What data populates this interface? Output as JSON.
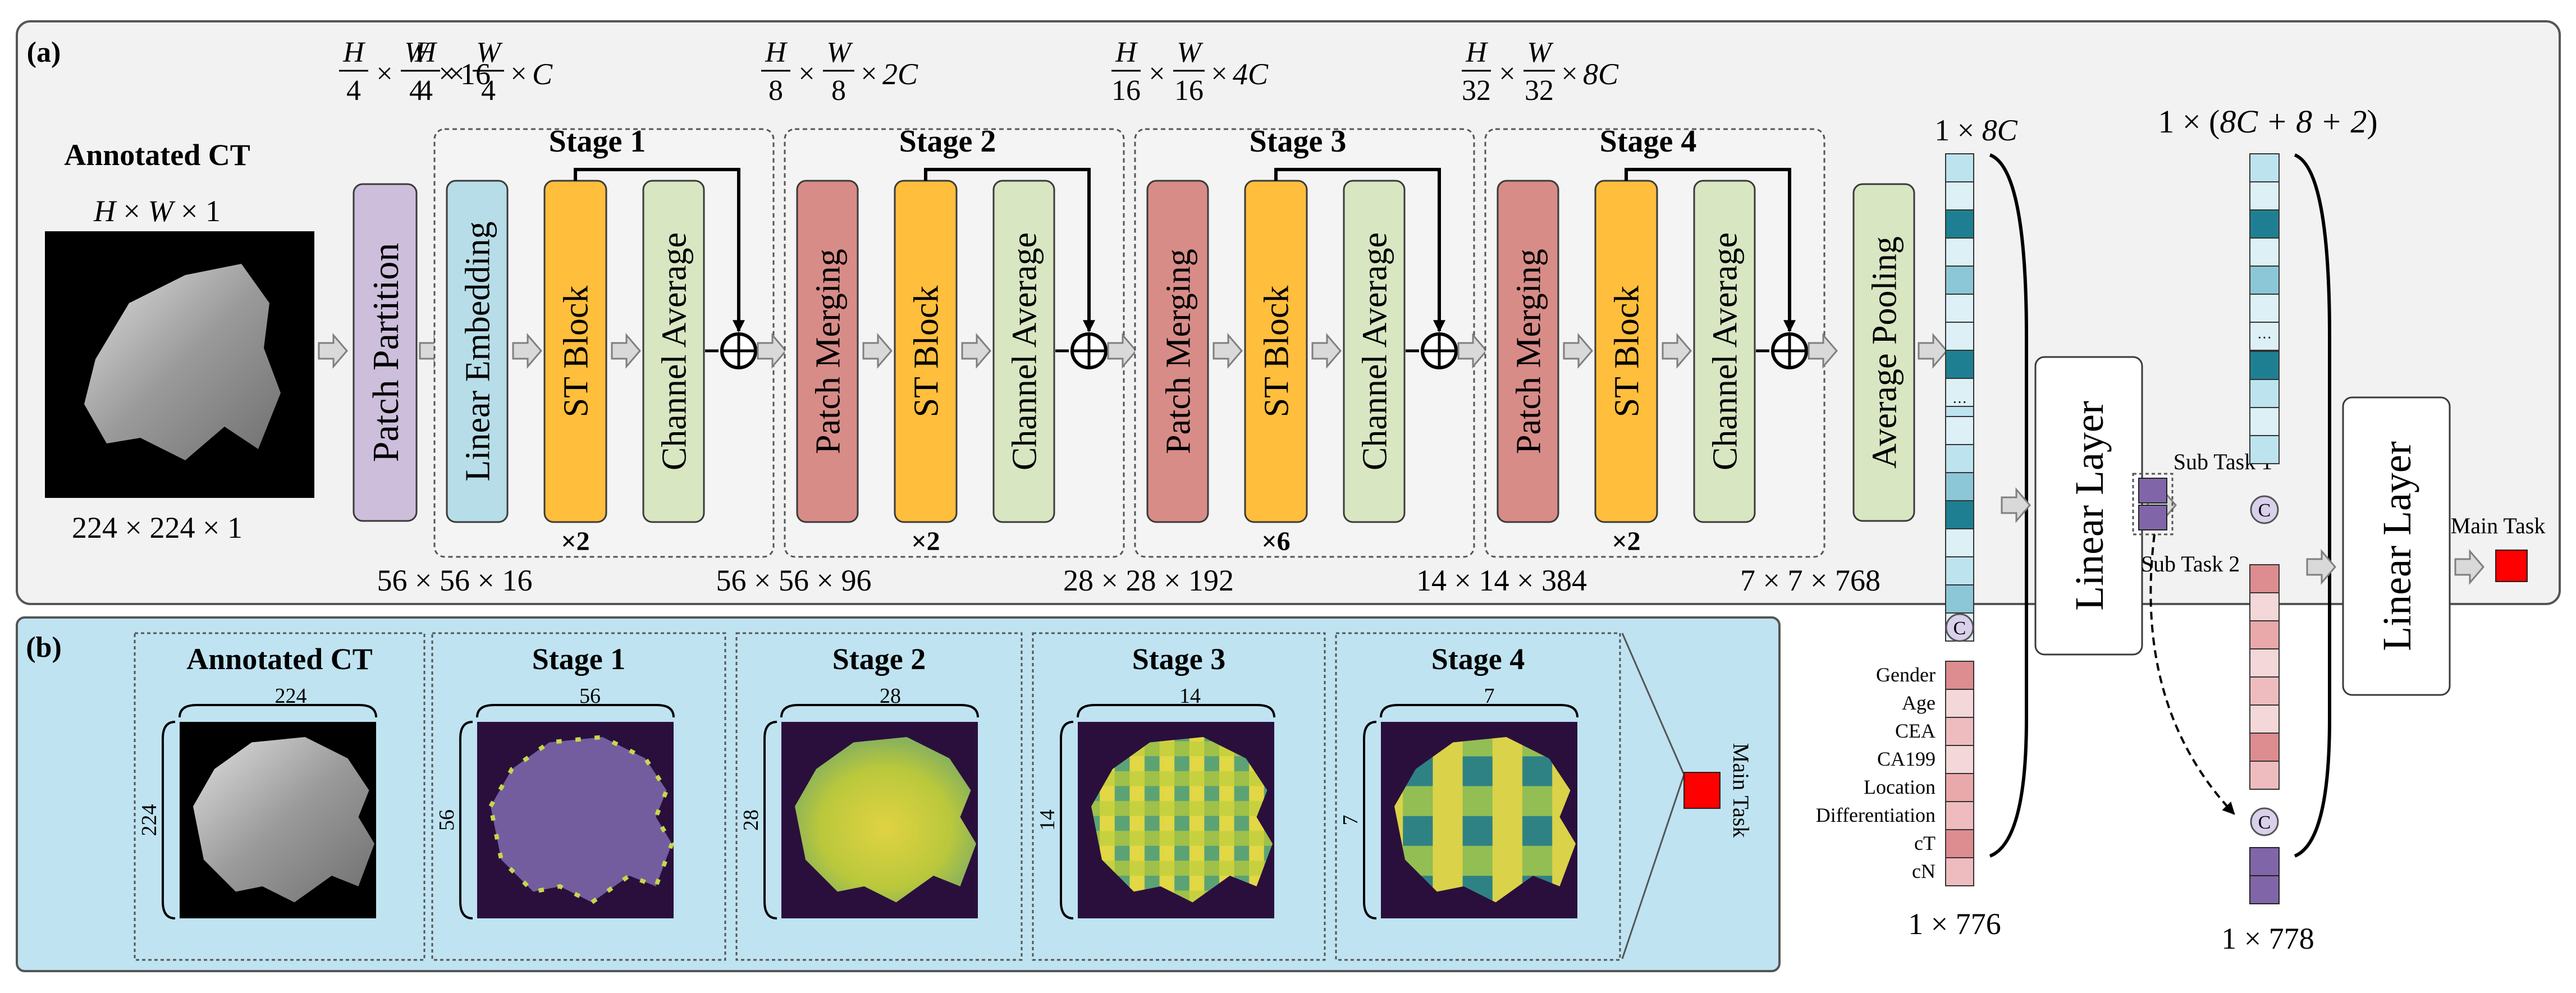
{
  "panel_a": {
    "label": "(a)",
    "input": {
      "title": "Annotated CT",
      "dim_h": "H",
      "dim_w": "W",
      "dim_c": "1",
      "size": "224 × 224 × 1"
    },
    "patch_partition": "Patch Partition",
    "patch_dim": {
      "num_a": "H",
      "den_a": "4",
      "num_b": "W",
      "den_b": "4",
      "suffix": "16"
    },
    "after_partition": "56 × 56 × 16",
    "stages": [
      {
        "title": "Stage 1",
        "block1": "Linear Embedding",
        "block2": "ST Block",
        "block3": "Channel Average",
        "repeat": "×2",
        "dim": {
          "num_a": "H",
          "den_a": "4",
          "num_b": "W",
          "den_b": "4",
          "suffix": "C"
        },
        "out": "56 × 56 × 96"
      },
      {
        "title": "Stage 2",
        "block1": "Patch Merging",
        "block2": "ST Block",
        "block3": "Channel Average",
        "repeat": "×2",
        "dim": {
          "num_a": "H",
          "den_a": "8",
          "num_b": "W",
          "den_b": "8",
          "suffix": "2C"
        },
        "out": "28 × 28 × 192"
      },
      {
        "title": "Stage 3",
        "block1": "Patch Merging",
        "block2": "ST Block",
        "block3": "Channel Average",
        "repeat": "×6",
        "dim": {
          "num_a": "H",
          "den_a": "16",
          "num_b": "W",
          "den_b": "16",
          "suffix": "4C"
        },
        "out": "14 × 14 × 384"
      },
      {
        "title": "Stage 4",
        "block1": "Patch Merging",
        "block2": "ST Block",
        "block3": "Channel Average",
        "repeat": "×2",
        "dim": {
          "num_a": "H",
          "den_a": "32",
          "num_b": "W",
          "den_b": "32",
          "suffix": "8C"
        },
        "out": "7 × 7 × 768"
      }
    ],
    "average_pooling": "Average Pooling",
    "feature_dim_prefix": "1 ×",
    "feature_dim_var": "8C",
    "vector_ellipsis": "···",
    "concat_symbol": "C",
    "clinical_features": [
      "Gender",
      "Age",
      "CEA",
      "CA199",
      "Location",
      "Differentiation",
      "cT",
      "cN"
    ],
    "concat_dim_1": "1 × 776",
    "linear_layer_1": "Linear Layer",
    "sub_task_1": "Sub Task 1",
    "sub_task_2": "Sub Task 2",
    "concat_dim_2_prefix": "1 ×",
    "concat_dim_2_expr": "8C + 8 + 2",
    "concat_dim_2": "1 × 778",
    "linear_layer_2": "Linear Layer",
    "main_task": "Main Task"
  },
  "panel_b": {
    "label": "(b)",
    "maps": [
      {
        "title": "Annotated CT",
        "size": "224"
      },
      {
        "title": "Stage 1",
        "size": "56"
      },
      {
        "title": "Stage 2",
        "size": "28"
      },
      {
        "title": "Stage 3",
        "size": "14"
      },
      {
        "title": "Stage 4",
        "size": "7"
      }
    ],
    "main_task": "Main Task"
  },
  "colors": {
    "panel_a_bg": "#f2f2f2",
    "panel_b_bg": "#bfe3f1",
    "patch_partition": "#cdbfdc",
    "linear_embedding": "#b7dde8",
    "st_block": "#ffbe3c",
    "channel_average": "#d8e6c2",
    "patch_merging": "#d88c88",
    "average_pooling": "#d8e6c2",
    "sub_task": "#8066a8",
    "main_task": "#ff0000"
  }
}
